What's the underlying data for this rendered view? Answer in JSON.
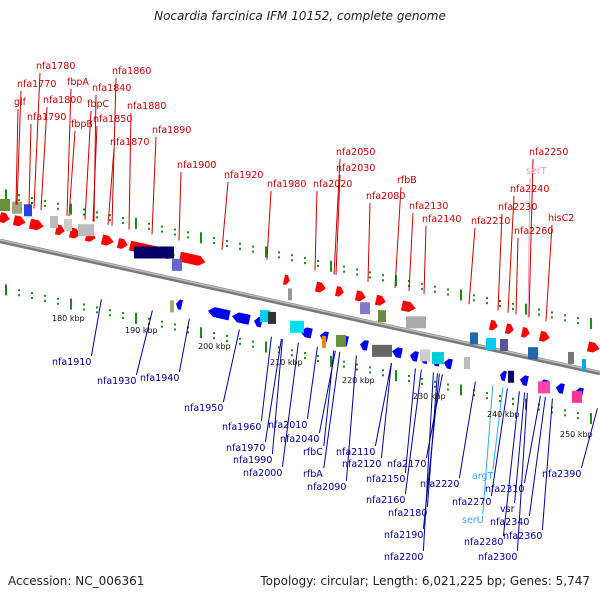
{
  "title": "Nocardia farcinica IFM 10152, complete genome",
  "footer": {
    "accession": "Accession: NC_006361",
    "summary": "Topology: circular; Length: 6,021,225 bp; Genes: 5,747"
  },
  "colors": {
    "forward_label": "#cc0000",
    "reverse_label": "#000099",
    "rna_label": "#33aaee",
    "pseudo_label": "#ee99bb",
    "forward_gene": "#ff0000",
    "reverse_gene": "#0000ee",
    "backbone": "#888888"
  },
  "scale": [
    "180 kbp",
    "190 kbp",
    "200 kbp",
    "210 kbp",
    "220 kbp",
    "230 kbp",
    "240 kbp",
    "250 kbp"
  ],
  "top_labels": [
    "nfa1780",
    "nfa1770",
    "glf",
    "nfa1800",
    "fbpA",
    "nfa1790",
    "fbpC",
    "nfa1860",
    "nfa1840",
    "fbpB",
    "nfa1850",
    "nfa1880",
    "nfa1870",
    "nfa1890",
    "nfa1900",
    "nfa1920",
    "nfa1980",
    "nfa2020",
    "nfa2050",
    "nfa2030",
    "nfa2080",
    "rfbB",
    "nfa2130",
    "nfa2140",
    "nfa2210",
    "nfa2250",
    "serT",
    "nfa2240",
    "nfa2230",
    "nfa2260",
    "hisC2"
  ],
  "bottom_labels": [
    "nfa1910",
    "nfa1930",
    "nfa1940",
    "nfa1950",
    "nfa1960",
    "nfa1970",
    "nfa1990",
    "nfa2000",
    "nfa2010",
    "nfa2040",
    "rfbC",
    "rfbA",
    "nfa2090",
    "nfa2110",
    "nfa2120",
    "nfa2170",
    "nfa2150",
    "nfa2160",
    "nfa2180",
    "nfa2190",
    "nfa2200",
    "nfa2220",
    "argT",
    "nfa2270",
    "serU",
    "nfa2280",
    "nfa2300",
    "nfa2310",
    "vsr",
    "nfa2340",
    "nfa2360",
    "nfa2390"
  ]
}
